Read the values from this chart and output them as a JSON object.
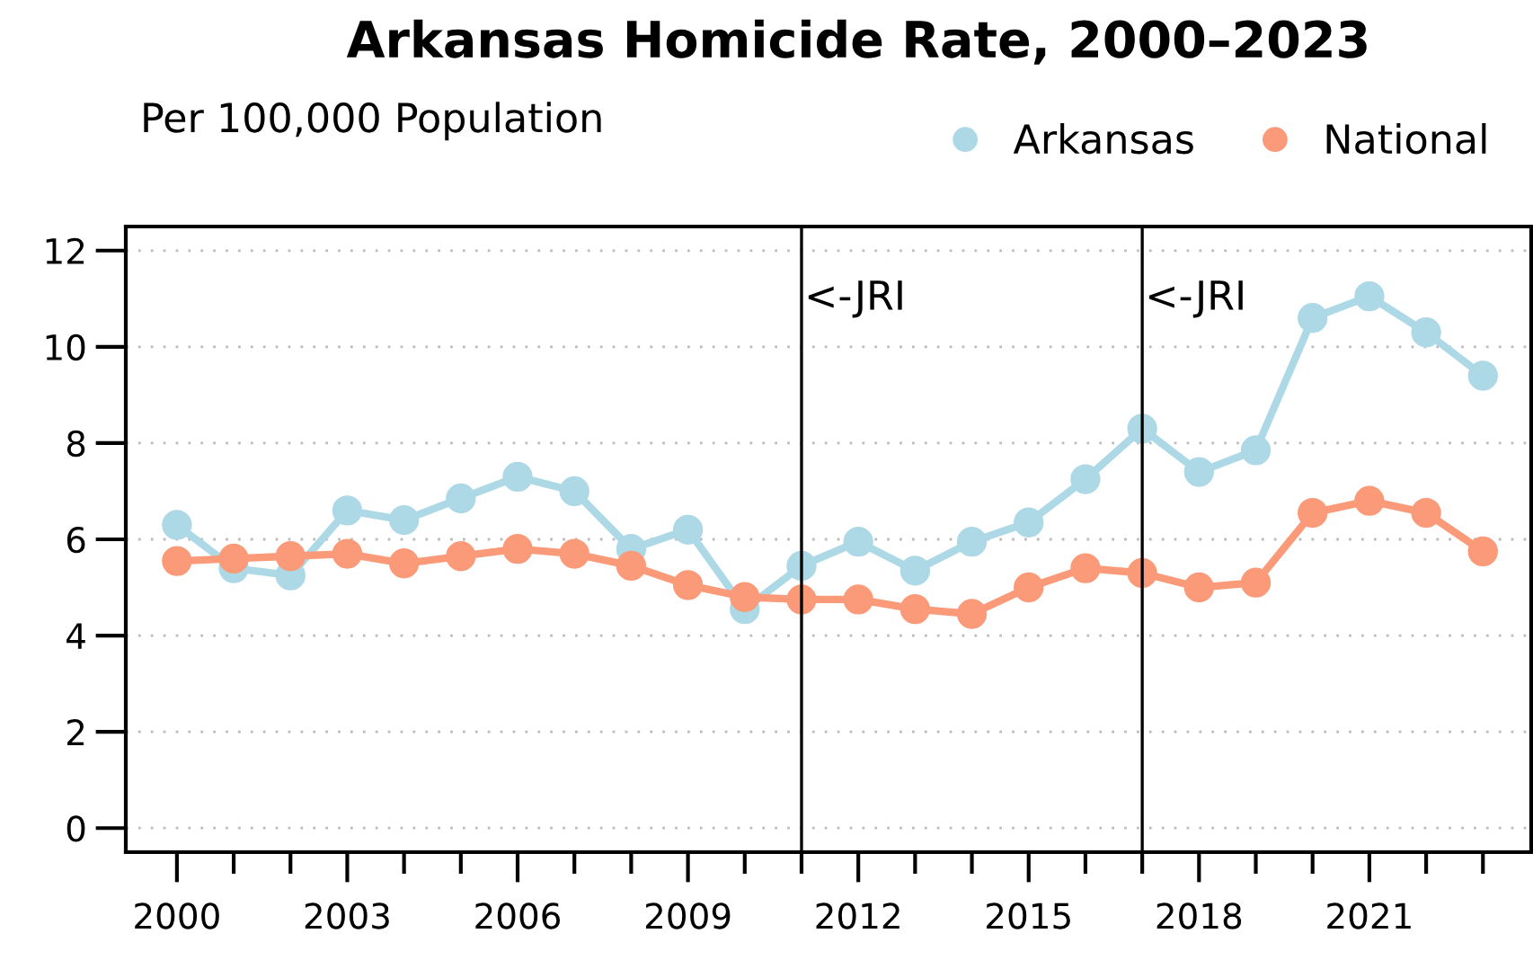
{
  "chart_data": {
    "type": "line",
    "title": "Arkansas Homicide Rate, 2000–2023",
    "subtitle": "Per 100,000 Population",
    "x": [
      2000,
      2001,
      2002,
      2003,
      2004,
      2005,
      2006,
      2007,
      2008,
      2009,
      2010,
      2011,
      2012,
      2013,
      2014,
      2015,
      2016,
      2017,
      2018,
      2019,
      2020,
      2021,
      2022,
      2023
    ],
    "series": [
      {
        "name": "Arkansas",
        "color": "#add8e6",
        "values": [
          6.3,
          5.4,
          5.25,
          6.6,
          6.4,
          6.85,
          7.3,
          7.0,
          5.8,
          6.2,
          4.55,
          5.45,
          5.95,
          5.35,
          5.95,
          6.35,
          7.25,
          8.3,
          7.4,
          7.85,
          10.6,
          11.05,
          10.3,
          9.4
        ]
      },
      {
        "name": "National",
        "color": "#fa9a78",
        "values": [
          5.55,
          5.6,
          5.65,
          5.7,
          5.5,
          5.65,
          5.8,
          5.7,
          5.45,
          5.05,
          4.8,
          4.75,
          4.75,
          4.55,
          4.45,
          5.0,
          5.4,
          5.3,
          5.0,
          5.1,
          6.55,
          6.8,
          6.55,
          5.75
        ]
      }
    ],
    "xlim": [
      1999.1,
      2023.85
    ],
    "xticks": [
      2000,
      {
        "value": 2001,
        "label": null
      },
      {
        "value": 2002,
        "label": null
      },
      2003,
      {
        "value": 2004,
        "label": null
      },
      {
        "value": 2005,
        "label": null
      },
      2006,
      {
        "value": 2007,
        "label": null
      },
      {
        "value": 2008,
        "label": null
      },
      2009,
      {
        "value": 2010,
        "label": null
      },
      {
        "value": 2011,
        "label": null
      },
      2012,
      {
        "value": 2013,
        "label": null
      },
      {
        "value": 2014,
        "label": null
      },
      2015,
      {
        "value": 2016,
        "label": null
      },
      {
        "value": 2017,
        "label": null
      },
      2018,
      {
        "value": 2019,
        "label": null
      },
      {
        "value": 2020,
        "label": null
      },
      2021,
      {
        "value": 2022,
        "label": null
      },
      {
        "value": 2023,
        "label": null
      }
    ],
    "ylim": [
      -0.5,
      12.5
    ],
    "yticks": [
      0,
      2,
      4,
      6,
      8,
      10,
      12
    ],
    "ref_lines": [
      {
        "axis": "x",
        "value": 2011,
        "label": "<-JRI",
        "color": "#000000"
      },
      {
        "axis": "x",
        "value": 2017,
        "label": "<-JRI",
        "color": "#000000"
      }
    ],
    "grid": "y",
    "legend": "top right",
    "marker": "circle",
    "line_style": "solid"
  }
}
